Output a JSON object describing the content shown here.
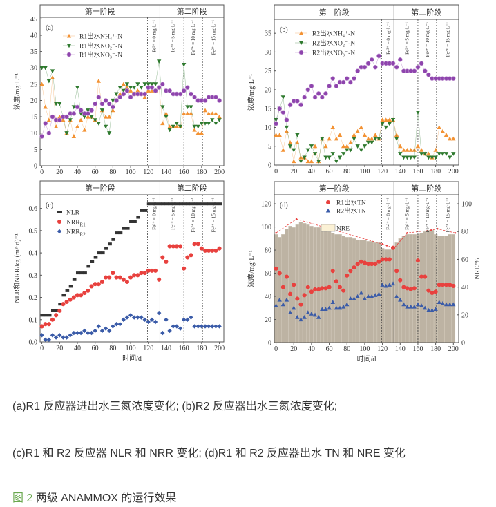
{
  "chart_data": [
    {
      "panel": "(a)",
      "type": "scatter",
      "stage_labels": [
        "第一阶段",
        "第二阶段"
      ],
      "stage_boundary_day": 133,
      "fe_lines": [
        119,
        160,
        181
      ],
      "fe_annotations": [
        "Fe²⁺ = 0 mg·L⁻¹",
        "Fe²⁺ = 5 mg·L⁻¹",
        "Fe²⁺ = 10 mg·L⁻¹",
        "Fe²⁺ = 15 mg·L⁻¹"
      ],
      "xlabel": "",
      "ylabel": "浓度/mg·L⁻¹",
      "xlim": [
        -2,
        205
      ],
      "ylim": [
        0,
        45.5
      ],
      "xticks": [
        "0",
        "20",
        "40",
        "60",
        "80",
        "100",
        "120",
        "140",
        "160",
        "180",
        "200"
      ],
      "yticks": [
        "0",
        "5",
        "10",
        "15",
        "20",
        "25",
        "30",
        "35",
        "40",
        "45"
      ],
      "x": [
        0,
        4,
        8,
        12,
        16,
        20,
        24,
        28,
        32,
        36,
        40,
        44,
        48,
        52,
        56,
        60,
        64,
        68,
        72,
        76,
        80,
        84,
        88,
        92,
        96,
        100,
        104,
        108,
        112,
        116,
        120,
        124,
        128,
        132,
        136,
        140,
        144,
        148,
        152,
        156,
        160,
        164,
        168,
        172,
        176,
        180,
        184,
        188,
        192,
        196,
        200
      ],
      "series": [
        {
          "name": "R1出水NH₄⁺-N",
          "marker": "triangle-up",
          "color": "#f39233",
          "values": [
            25,
            18,
            14,
            27,
            12,
            15,
            14,
            10,
            14,
            9,
            12,
            14,
            11,
            15,
            15,
            14,
            26,
            17,
            15,
            15,
            17,
            20,
            22,
            25,
            24,
            23,
            22,
            23,
            22,
            21,
            23,
            23,
            23,
            24,
            13,
            16,
            12,
            12,
            12,
            12,
            16,
            16,
            16,
            11,
            10,
            10,
            17,
            16,
            16,
            16,
            15
          ]
        },
        {
          "name": "R1出水NO₂⁻-N",
          "marker": "triangle-down",
          "color": "#2f7a2f",
          "values": [
            30,
            30,
            26,
            29,
            19,
            19,
            15,
            10,
            14,
            18,
            24,
            16,
            15,
            17,
            15,
            14,
            13,
            17,
            12,
            10,
            20,
            22,
            24,
            23,
            25,
            24,
            24,
            25,
            24,
            25,
            25,
            25,
            25,
            32,
            18,
            15,
            11,
            12,
            13,
            12,
            31,
            18,
            18,
            12,
            12,
            13,
            13,
            13,
            14,
            13,
            14
          ]
        },
        {
          "name": "R1出水NO₃⁻-N",
          "marker": "circle",
          "color": "#8e44ad",
          "values": [
            9,
            13,
            10,
            15,
            14,
            14,
            15,
            15,
            16,
            16,
            18,
            17,
            16,
            16,
            17,
            19,
            21,
            19,
            20,
            19,
            18,
            20,
            21,
            22,
            23,
            21,
            22,
            22,
            22,
            22,
            24,
            24,
            23,
            24,
            25,
            23,
            23,
            22,
            22,
            22,
            23,
            24,
            22,
            21,
            20,
            20,
            20,
            21,
            21,
            21,
            20
          ]
        }
      ]
    },
    {
      "panel": "(b)",
      "type": "scatter",
      "stage_labels": [
        "第一阶段",
        "第二阶段"
      ],
      "stage_boundary_day": 133,
      "fe_lines": [
        119,
        160,
        181
      ],
      "fe_annotations": [
        "Fe²⁺ = 0 mg·L⁻¹",
        "Fe²⁺ = 5 mg·L⁻¹",
        "Fe²⁺ = 10 mg·L⁻¹",
        "Fe²⁺ = 15 mg·L⁻¹"
      ],
      "xlabel": "",
      "ylabel": "浓度/mg·L⁻¹",
      "xlim": [
        -2,
        206
      ],
      "ylim": [
        0,
        38.7
      ],
      "xticks": [
        "0",
        "20",
        "40",
        "60",
        "80",
        "100",
        "120",
        "140",
        "160",
        "180",
        "200"
      ],
      "yticks": [
        "0",
        "5",
        "10",
        "15",
        "20",
        "25",
        "30",
        "35"
      ],
      "x": [
        0,
        4,
        8,
        12,
        16,
        20,
        24,
        28,
        32,
        36,
        40,
        44,
        48,
        52,
        56,
        60,
        64,
        68,
        72,
        76,
        80,
        84,
        88,
        92,
        96,
        100,
        104,
        108,
        112,
        116,
        120,
        124,
        128,
        132,
        136,
        140,
        144,
        148,
        152,
        156,
        160,
        164,
        168,
        172,
        176,
        180,
        184,
        188,
        192,
        196,
        200
      ],
      "series": [
        {
          "name": "R2出水NH₄⁺-N",
          "marker": "triangle-up",
          "color": "#f39233",
          "values": [
            8,
            8,
            4,
            9,
            6,
            1,
            6,
            2,
            2,
            1,
            1,
            5,
            1,
            7,
            5,
            7,
            10,
            7,
            8,
            5,
            5,
            6,
            8,
            9,
            10,
            8,
            7,
            7,
            8,
            7,
            12,
            12,
            12,
            12,
            8,
            5,
            4,
            4,
            4,
            4,
            5,
            4,
            3,
            3,
            2,
            4,
            10,
            9,
            8,
            7,
            7
          ]
        },
        {
          "name": "R2出水NO₂⁻-N",
          "marker": "triangle-down",
          "color": "#2f7a2f",
          "values": [
            12,
            15,
            18,
            10,
            5,
            4,
            8,
            1,
            2,
            4,
            5,
            3,
            1,
            7,
            2,
            2,
            3,
            1,
            2,
            3,
            4,
            4,
            7,
            5,
            4,
            5,
            6,
            6,
            7,
            7,
            11,
            10,
            11,
            12,
            7,
            3,
            2,
            2,
            2,
            2,
            14,
            3,
            3,
            2,
            2,
            2,
            3,
            3,
            3,
            2,
            3
          ]
        },
        {
          "name": "R2出水NO₃⁻-N",
          "marker": "circle",
          "color": "#8e44ad",
          "values": [
            11,
            15,
            14,
            12,
            16,
            17,
            17,
            16,
            18,
            20,
            21,
            18,
            19,
            18,
            19,
            21,
            23,
            21,
            22,
            22,
            23,
            22,
            23,
            25,
            26,
            26,
            27,
            28,
            26,
            29,
            27,
            27,
            27,
            27,
            26,
            28,
            25,
            25,
            25,
            25,
            26,
            27,
            25,
            24,
            23,
            23,
            23,
            23,
            23,
            23,
            23
          ]
        }
      ]
    },
    {
      "panel": "(c)",
      "type": "scatter",
      "stage_labels": [
        "第一阶段",
        "第二阶段"
      ],
      "stage_boundary_day": 133,
      "fe_lines": [
        119,
        160,
        181
      ],
      "fe_annotations": [
        "Fe²⁺ = 0 mg·L⁻¹",
        "Fe²⁺ = 5 mg·L⁻¹",
        "Fe²⁺ = 10 mg·L⁻¹",
        "Fe²⁺ = 15 mg·L⁻¹"
      ],
      "xlabel": "时间/d",
      "ylabel": "NLR和NRR/kg·(m³·d)⁻¹",
      "xlim": [
        -2,
        205
      ],
      "ylim": [
        0,
        0.661
      ],
      "xticks": [
        "0",
        "20",
        "40",
        "60",
        "80",
        "100",
        "120",
        "140",
        "160",
        "180",
        "200"
      ],
      "yticks": [
        "0.0",
        "0.1",
        "0.2",
        "0.3",
        "0.4",
        "0.5",
        "0.6"
      ],
      "x": [
        0,
        4,
        8,
        12,
        16,
        20,
        24,
        28,
        32,
        36,
        40,
        44,
        48,
        52,
        56,
        60,
        64,
        68,
        72,
        76,
        80,
        84,
        88,
        92,
        96,
        100,
        104,
        108,
        112,
        116,
        120,
        124,
        128,
        132,
        136,
        140,
        144,
        148,
        152,
        156,
        160,
        164,
        168,
        172,
        176,
        180,
        184,
        188,
        192,
        196,
        200
      ],
      "series": [
        {
          "name": "NLR",
          "sub": "",
          "marker": "square",
          "color": "#333333",
          "values": [
            0.12,
            0.12,
            0.12,
            0.14,
            0.14,
            0.17,
            0.21,
            0.23,
            0.25,
            0.28,
            0.31,
            0.31,
            0.31,
            0.34,
            0.36,
            0.38,
            0.4,
            0.4,
            0.42,
            0.44,
            0.46,
            0.49,
            0.49,
            0.51,
            0.51,
            0.54,
            0.54,
            0.56,
            0.59,
            0.59,
            0.62,
            0.62,
            0.62,
            0.62,
            0.62,
            0.62,
            0.62,
            0.62,
            0.62,
            0.62,
            0.62,
            0.62,
            0.62,
            0.62,
            0.62,
            0.62,
            0.62,
            0.62,
            0.62,
            0.62,
            0.62
          ]
        },
        {
          "name": "NRR",
          "sub": "R1",
          "marker": "circle",
          "color": "#e8413e",
          "values": [
            0.07,
            0.08,
            0.08,
            0.1,
            0.12,
            0.14,
            0.17,
            0.18,
            0.19,
            0.2,
            0.21,
            0.21,
            0.22,
            0.23,
            0.25,
            0.26,
            0.26,
            0.27,
            0.29,
            0.29,
            0.31,
            0.29,
            0.29,
            0.28,
            0.27,
            0.29,
            0.3,
            0.3,
            0.31,
            0.31,
            0.32,
            0.32,
            0.32,
            0.28,
            0.38,
            0.36,
            0.43,
            0.43,
            0.43,
            0.43,
            0.33,
            0.38,
            0.39,
            0.44,
            0.44,
            0.42,
            0.41,
            0.41,
            0.41,
            0.41,
            0.42
          ]
        },
        {
          "name": "NRR",
          "sub": "R2",
          "marker": "diamond",
          "color": "#3a5ba8",
          "values": [
            0.03,
            0.01,
            0.01,
            0.03,
            0.02,
            0.03,
            0.02,
            0.02,
            0.03,
            0.04,
            0.04,
            0.04,
            0.05,
            0.04,
            0.04,
            0.05,
            0.07,
            0.05,
            0.06,
            0.05,
            0.07,
            0.08,
            0.08,
            0.1,
            0.11,
            0.12,
            0.11,
            0.11,
            0.11,
            0.1,
            0.09,
            0.1,
            0.09,
            0.13,
            0.04,
            0.1,
            0.05,
            0.07,
            0.07,
            0.06,
            0.1,
            0.1,
            0.11,
            0.07,
            0.07,
            0.07,
            0.07,
            0.07,
            0.07,
            0.07,
            0.07
          ]
        }
      ]
    },
    {
      "panel": "(d)",
      "type": "bar+scatter",
      "stage_labels": [
        "第一阶段",
        "第二阶段"
      ],
      "stage_boundary_day": 133,
      "fe_lines": [
        119,
        160,
        181
      ],
      "fe_annotations": [
        "Fe²⁺ = 0 mg·L⁻¹",
        "Fe²⁺ = 5 mg·L⁻¹",
        "Fe²⁺ = 10 mg·L⁻¹",
        "Fe²⁺ = 15 mg·L⁻¹"
      ],
      "xlabel": "时间/d",
      "ylabel": "浓度/mg·L⁻¹",
      "ylabel_right": "NRE/%",
      "xlim": [
        -2,
        206
      ],
      "ylim": [
        0,
        127.8
      ],
      "ylim_right": [
        0,
        106.5
      ],
      "xticks": [
        "0",
        "20",
        "40",
        "60",
        "80",
        "100",
        "120",
        "140",
        "160",
        "180",
        "200"
      ],
      "yticks": [
        "0",
        "20",
        "40",
        "60",
        "80",
        "100",
        "120"
      ],
      "yticks_right": [
        "0",
        "20",
        "40",
        "60",
        "80",
        "100"
      ],
      "x": [
        0,
        4,
        8,
        12,
        16,
        20,
        24,
        28,
        32,
        36,
        40,
        44,
        48,
        52,
        56,
        60,
        64,
        68,
        72,
        76,
        80,
        84,
        88,
        92,
        96,
        100,
        104,
        108,
        112,
        116,
        120,
        124,
        128,
        132,
        136,
        140,
        144,
        148,
        152,
        156,
        160,
        164,
        168,
        172,
        176,
        180,
        184,
        188,
        192,
        196,
        200
      ],
      "bars": {
        "name": "NRE",
        "axis": "right",
        "color": "#bdb3a3",
        "legend_fill": "#fbf1d5",
        "values": [
          78,
          76,
          78,
          82,
          84,
          83,
          85,
          87,
          86,
          85,
          84,
          83,
          83,
          82,
          81,
          80,
          79,
          78,
          78,
          77,
          76,
          76,
          75,
          74,
          74,
          74,
          73,
          73,
          72,
          72,
          68,
          67,
          67,
          68,
          72,
          75,
          77,
          78,
          78,
          78,
          78,
          79,
          80,
          81,
          81,
          78,
          77,
          77,
          77,
          78,
          78
        ]
      },
      "nre_envelope": {
        "color": "#e8413e",
        "x": [
          0,
          23,
          120,
          125,
          133,
          148,
          175,
          182,
          202
        ],
        "values": [
          79,
          89,
          71,
          70,
          68,
          79,
          81,
          82,
          79
        ]
      },
      "series": [
        {
          "name": "R1出水TN",
          "marker": "circle",
          "color": "#e8413e",
          "values": [
            64,
            60,
            48,
            57,
            42,
            50,
            38,
            33,
            41,
            48,
            44,
            46,
            46,
            47,
            47,
            48,
            62,
            53,
            48,
            45,
            58,
            62,
            65,
            68,
            70,
            69,
            68,
            68,
            68,
            70,
            72,
            72,
            72,
            82,
            62,
            54,
            48,
            47,
            46,
            47,
            71,
            57,
            57,
            45,
            43,
            44,
            50,
            50,
            50,
            50,
            49
          ]
        },
        {
          "name": "R2出水TN",
          "marker": "triangle-up",
          "color": "#3a5ba8",
          "values": [
            32,
            37,
            33,
            37,
            26,
            30,
            22,
            20,
            22,
            26,
            25,
            24,
            22,
            29,
            29,
            30,
            35,
            30,
            30,
            31,
            33,
            38,
            38,
            40,
            43,
            38,
            40,
            40,
            41,
            42,
            50,
            49,
            50,
            51,
            40,
            37,
            33,
            31,
            31,
            31,
            33,
            32,
            30,
            28,
            28,
            29,
            35,
            34,
            33,
            33,
            33
          ]
        }
      ]
    }
  ],
  "captions": {
    "line1": "(a)R1 反应器进出水三氮浓度变化; (b)R2 反应器出水三氮浓度变化;",
    "line2": "(c)R1 和 R2 反应器 NLR 和 NRR 变化; (d)R1 和 R2 反应器出水 TN 和 NRE 变化",
    "figure_number": "图 2",
    "figure_title": "两级 ANAMMOX 的运行效果",
    "figure_number_color": "#6aa84f"
  }
}
